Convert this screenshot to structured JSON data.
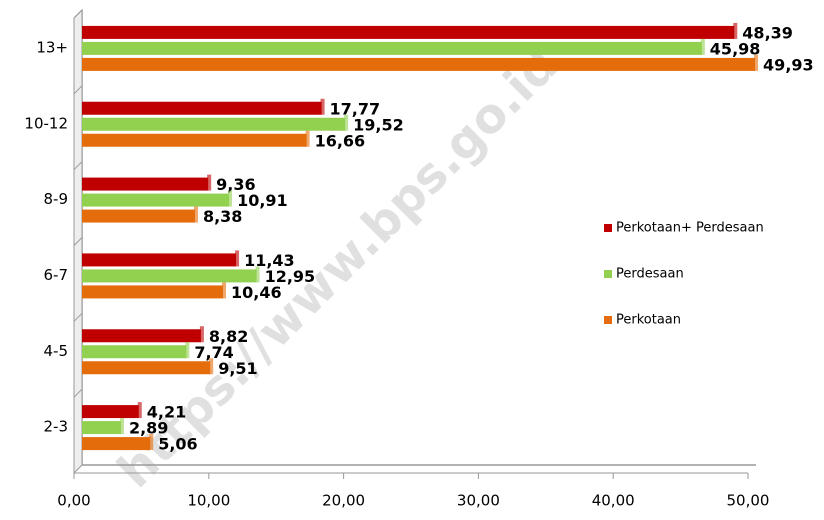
{
  "chart_data": {
    "type": "bar",
    "orientation": "horizontal",
    "categories": [
      "2-3",
      "4-5",
      "6-7",
      "8-9",
      "10-12",
      "13+"
    ],
    "series": [
      {
        "name": "Perkotaan+ Perdesaan",
        "color": "#c00000",
        "values": [
          4.21,
          8.82,
          11.43,
          9.36,
          17.77,
          48.39
        ],
        "value_labels": [
          "4,21",
          "8,82",
          "11,43",
          "9,36",
          "17,77",
          "48,39"
        ]
      },
      {
        "name": "Perdesaan",
        "color": "#92d050",
        "values": [
          2.89,
          7.74,
          12.95,
          10.91,
          19.52,
          45.98
        ],
        "value_labels": [
          "2,89",
          "7,74",
          "12,95",
          "10,91",
          "19,52",
          "45,98"
        ]
      },
      {
        "name": "Perkotaan",
        "color": "#e46c0a",
        "values": [
          5.06,
          9.51,
          10.46,
          8.38,
          16.66,
          49.93
        ],
        "value_labels": [
          "5,06",
          "9,51",
          "10,46",
          "8,38",
          "16,66",
          "49,93"
        ]
      }
    ],
    "xlim": [
      0,
      50
    ],
    "xticks": [
      {
        "value": 0,
        "label": "0,00"
      },
      {
        "value": 10,
        "label": "10,00"
      },
      {
        "value": 20,
        "label": "20,00"
      },
      {
        "value": 30,
        "label": "30,00"
      },
      {
        "value": 40,
        "label": "40,00"
      },
      {
        "value": 50,
        "label": "50,00"
      }
    ],
    "legend": "right",
    "watermark": "https://www.bps.go.id"
  }
}
